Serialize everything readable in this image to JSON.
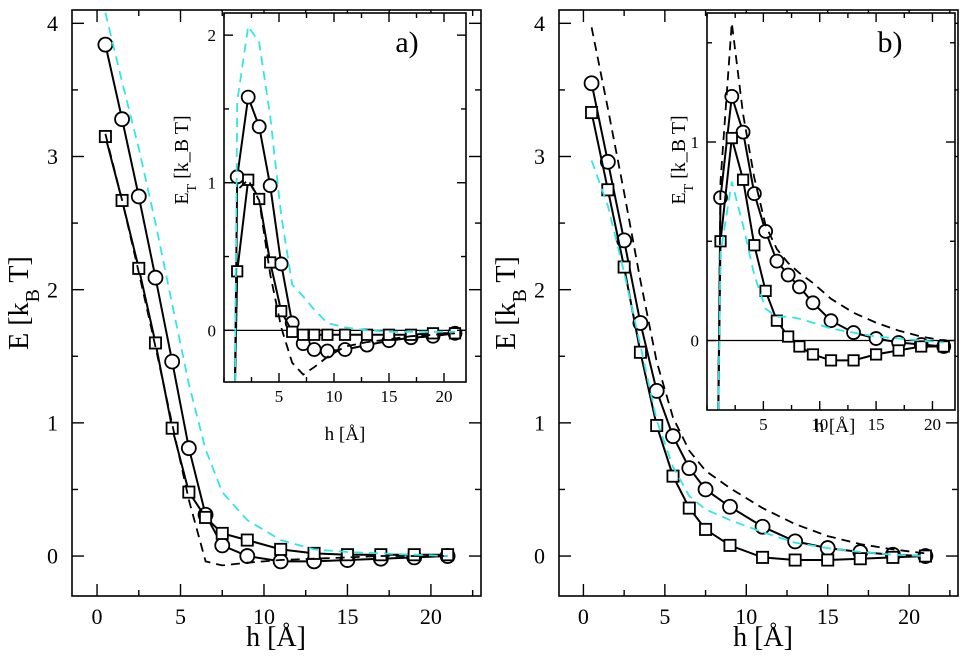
{
  "chart_data": [
    {
      "type": "line",
      "panel_label": "a)",
      "xlabel": "h [Å]",
      "ylabel": "E [k_B T]",
      "xlim": [
        -1.5,
        23
      ],
      "ylim": [
        -0.3,
        4.1
      ],
      "xticks": [
        0,
        5,
        10,
        15,
        20
      ],
      "yticks": [
        0,
        1,
        2,
        3,
        4
      ],
      "grid": false,
      "series": [
        {
          "style": "circles-solid",
          "color": "#000000",
          "x": [
            0.5,
            1.5,
            2.5,
            3.5,
            4.5,
            5.5,
            6.5,
            7.5,
            9,
            11,
            13,
            15,
            17,
            19,
            21
          ],
          "y": [
            3.84,
            3.28,
            2.7,
            2.09,
            1.46,
            0.81,
            0.31,
            0.08,
            0.0,
            -0.04,
            -0.04,
            -0.03,
            -0.02,
            -0.01,
            0.0
          ]
        },
        {
          "style": "squares-solid",
          "color": "#000000",
          "x": [
            0.5,
            1.5,
            2.5,
            3.5,
            4.5,
            5.5,
            6.5,
            7.5,
            9,
            11,
            13,
            15,
            17,
            19,
            21
          ],
          "y": [
            3.15,
            2.67,
            2.16,
            1.6,
            0.96,
            0.48,
            0.29,
            0.17,
            0.12,
            0.05,
            0.02,
            0.01,
            0.01,
            0.01,
            0.01
          ]
        },
        {
          "style": "dashed",
          "color": "#000000",
          "x": [
            0.5,
            1.5,
            2.5,
            3.5,
            4.5,
            5.5,
            6.5,
            7.5,
            9,
            11,
            13,
            15,
            17,
            19,
            21
          ],
          "y": [
            3.17,
            2.67,
            2.13,
            1.57,
            0.99,
            0.42,
            -0.04,
            -0.07,
            -0.05,
            -0.03,
            -0.02,
            -0.01,
            0.0,
            0.0,
            0.0
          ]
        },
        {
          "style": "dashed",
          "color": "#33e6e6",
          "x": [
            0.5,
            1.5,
            2.5,
            3.5,
            4.5,
            5.5,
            6.5,
            7.5,
            9,
            11,
            13,
            15,
            17,
            19,
            21
          ],
          "y": [
            4.08,
            3.56,
            3.06,
            2.5,
            1.89,
            1.29,
            0.8,
            0.48,
            0.27,
            0.12,
            0.05,
            0.03,
            0.02,
            0.01,
            0.0
          ]
        }
      ],
      "inset": {
        "xlabel": "h [Å]",
        "ylabel": "E_T [k_B T]",
        "xlim": [
          0,
          22
        ],
        "ylim": [
          -0.35,
          2.15
        ],
        "xticks": [
          5,
          10,
          15,
          20
        ],
        "yticks": [
          0,
          1,
          2
        ],
        "series": [
          {
            "style": "circles-solid",
            "color": "#000000",
            "x": [
              1.0,
              1.2,
              2.2,
              3.2,
              4.2,
              5.2,
              6.2,
              7.2,
              8.2,
              9.4,
              11,
              13,
              15,
              17,
              19,
              21
            ],
            "y": [
              -0.35,
              1.04,
              1.58,
              1.38,
              0.98,
              0.45,
              0.05,
              -0.09,
              -0.13,
              -0.14,
              -0.13,
              -0.1,
              -0.07,
              -0.05,
              -0.04,
              -0.02
            ]
          },
          {
            "style": "squares-solid",
            "color": "#000000",
            "x": [
              1.0,
              1.2,
              2.2,
              3.2,
              4.2,
              5.2,
              6.2,
              7.2,
              8.2,
              9.4,
              11,
              13,
              15,
              17,
              19,
              21
            ],
            "y": [
              -0.35,
              0.4,
              1.02,
              0.89,
              0.46,
              0.13,
              -0.01,
              -0.03,
              -0.03,
              -0.03,
              -0.03,
              -0.03,
              -0.03,
              -0.03,
              -0.02,
              -0.02
            ]
          },
          {
            "style": "dashed",
            "color": "#000000",
            "x": [
              1.0,
              1.2,
              2.2,
              3.2,
              4.2,
              5.2,
              6.2,
              7.2,
              8.2,
              9.4,
              11,
              13,
              15,
              17,
              19,
              21
            ],
            "y": [
              -0.35,
              0.95,
              1.02,
              0.88,
              0.38,
              0.02,
              -0.22,
              -0.3,
              -0.25,
              -0.18,
              -0.11,
              -0.08,
              -0.06,
              -0.04,
              -0.03,
              -0.02
            ]
          },
          {
            "style": "dashed",
            "color": "#33e6e6",
            "x": [
              1.0,
              1.2,
              2.2,
              3.2,
              4.2,
              5.2,
              6.2,
              7.2,
              8.2,
              9.4,
              11,
              13,
              15,
              17,
              19,
              21
            ],
            "y": [
              -0.35,
              1.55,
              2.06,
              1.95,
              1.45,
              0.78,
              0.31,
              0.23,
              0.14,
              0.05,
              0.02,
              0.0,
              -0.01,
              -0.01,
              -0.01,
              -0.01
            ]
          }
        ]
      }
    },
    {
      "type": "line",
      "panel_label": "b)",
      "xlabel": "h [Å]",
      "ylabel": "E [k_B T]",
      "xlim": [
        -1.5,
        23
      ],
      "ylim": [
        -0.3,
        4.1
      ],
      "xticks": [
        0,
        5,
        10,
        15,
        20
      ],
      "yticks": [
        0,
        1,
        2,
        3,
        4
      ],
      "grid": false,
      "series": [
        {
          "style": "circles-solid",
          "color": "#000000",
          "x": [
            0.5,
            1.5,
            2.5,
            3.5,
            4.5,
            5.5,
            6.5,
            7.5,
            9,
            11,
            13,
            15,
            17,
            19,
            21
          ],
          "y": [
            3.55,
            2.96,
            2.37,
            1.75,
            1.24,
            0.9,
            0.66,
            0.5,
            0.37,
            0.22,
            0.11,
            0.06,
            0.03,
            0.01,
            0.0
          ]
        },
        {
          "style": "squares-solid",
          "color": "#000000",
          "x": [
            0.5,
            1.5,
            2.5,
            3.5,
            4.5,
            5.5,
            6.5,
            7.5,
            9,
            11,
            13,
            15,
            17,
            19,
            21
          ],
          "y": [
            3.33,
            2.75,
            2.17,
            1.53,
            0.98,
            0.6,
            0.36,
            0.2,
            0.08,
            -0.01,
            -0.03,
            -0.03,
            -0.02,
            -0.01,
            0.0
          ]
        },
        {
          "style": "dashed",
          "color": "#000000",
          "x": [
            0.5,
            1.5,
            2.5,
            3.5,
            4.5,
            5.5,
            6.5,
            7.5,
            9,
            11,
            13,
            15,
            17,
            19,
            21
          ],
          "y": [
            3.97,
            3.36,
            2.73,
            2.07,
            1.46,
            1.04,
            0.79,
            0.64,
            0.51,
            0.36,
            0.24,
            0.15,
            0.09,
            0.05,
            0.02
          ]
        },
        {
          "style": "dashed",
          "color": "#33e6e6",
          "x": [
            0.5,
            1.5,
            2.5,
            3.5,
            4.5,
            5.5,
            6.5,
            7.5,
            9,
            11,
            13,
            15,
            17,
            19,
            21
          ],
          "y": [
            2.97,
            2.63,
            2.13,
            1.58,
            1.02,
            0.67,
            0.45,
            0.35,
            0.27,
            0.18,
            0.1,
            0.06,
            0.03,
            0.01,
            0.0
          ]
        }
      ],
      "inset": {
        "xlabel": "h [Å]",
        "ylabel": "E_T [k_B T]",
        "xlim": [
          0,
          22
        ],
        "ylim": [
          -0.35,
          1.65
        ],
        "xticks": [
          5,
          10,
          15,
          20
        ],
        "yticks": [
          0,
          1
        ],
        "series": [
          {
            "style": "circles-solid",
            "color": "#000000",
            "x": [
              1.0,
              1.2,
              2.2,
              3.2,
              4.2,
              5.2,
              6.2,
              7.2,
              8.2,
              9.4,
              11,
              13,
              15,
              17,
              19,
              21
            ],
            "y": [
              -0.35,
              0.72,
              1.23,
              1.05,
              0.74,
              0.55,
              0.4,
              0.33,
              0.27,
              0.19,
              0.1,
              0.04,
              0.01,
              -0.01,
              -0.02,
              -0.03
            ]
          },
          {
            "style": "squares-solid",
            "color": "#000000",
            "x": [
              1.0,
              1.2,
              2.2,
              3.2,
              4.2,
              5.2,
              6.2,
              7.2,
              8.2,
              9.4,
              11,
              13,
              15,
              17,
              19,
              21
            ],
            "y": [
              -0.35,
              0.5,
              1.02,
              0.81,
              0.48,
              0.25,
              0.1,
              0.02,
              -0.03,
              -0.07,
              -0.1,
              -0.1,
              -0.07,
              -0.05,
              -0.03,
              -0.03
            ]
          },
          {
            "style": "dashed",
            "color": "#000000",
            "x": [
              1.0,
              1.2,
              2.2,
              3.2,
              4.2,
              5.2,
              6.2,
              7.2,
              8.2,
              9.4,
              11,
              13,
              15,
              17,
              19,
              21
            ],
            "y": [
              -0.35,
              0.8,
              1.6,
              1.14,
              0.82,
              0.58,
              0.46,
              0.39,
              0.34,
              0.29,
              0.21,
              0.14,
              0.09,
              0.05,
              0.02,
              0.0
            ]
          },
          {
            "style": "dashed",
            "color": "#33e6e6",
            "x": [
              1.0,
              1.2,
              2.2,
              3.2,
              4.2,
              5.2,
              6.2,
              7.2,
              8.2,
              9.4,
              11,
              13,
              15,
              17,
              19,
              21
            ],
            "y": [
              -0.35,
              0.44,
              0.8,
              0.58,
              0.33,
              0.16,
              0.12,
              0.12,
              0.11,
              0.09,
              0.06,
              0.04,
              0.02,
              0.01,
              0.0,
              -0.01
            ]
          }
        ]
      }
    }
  ]
}
